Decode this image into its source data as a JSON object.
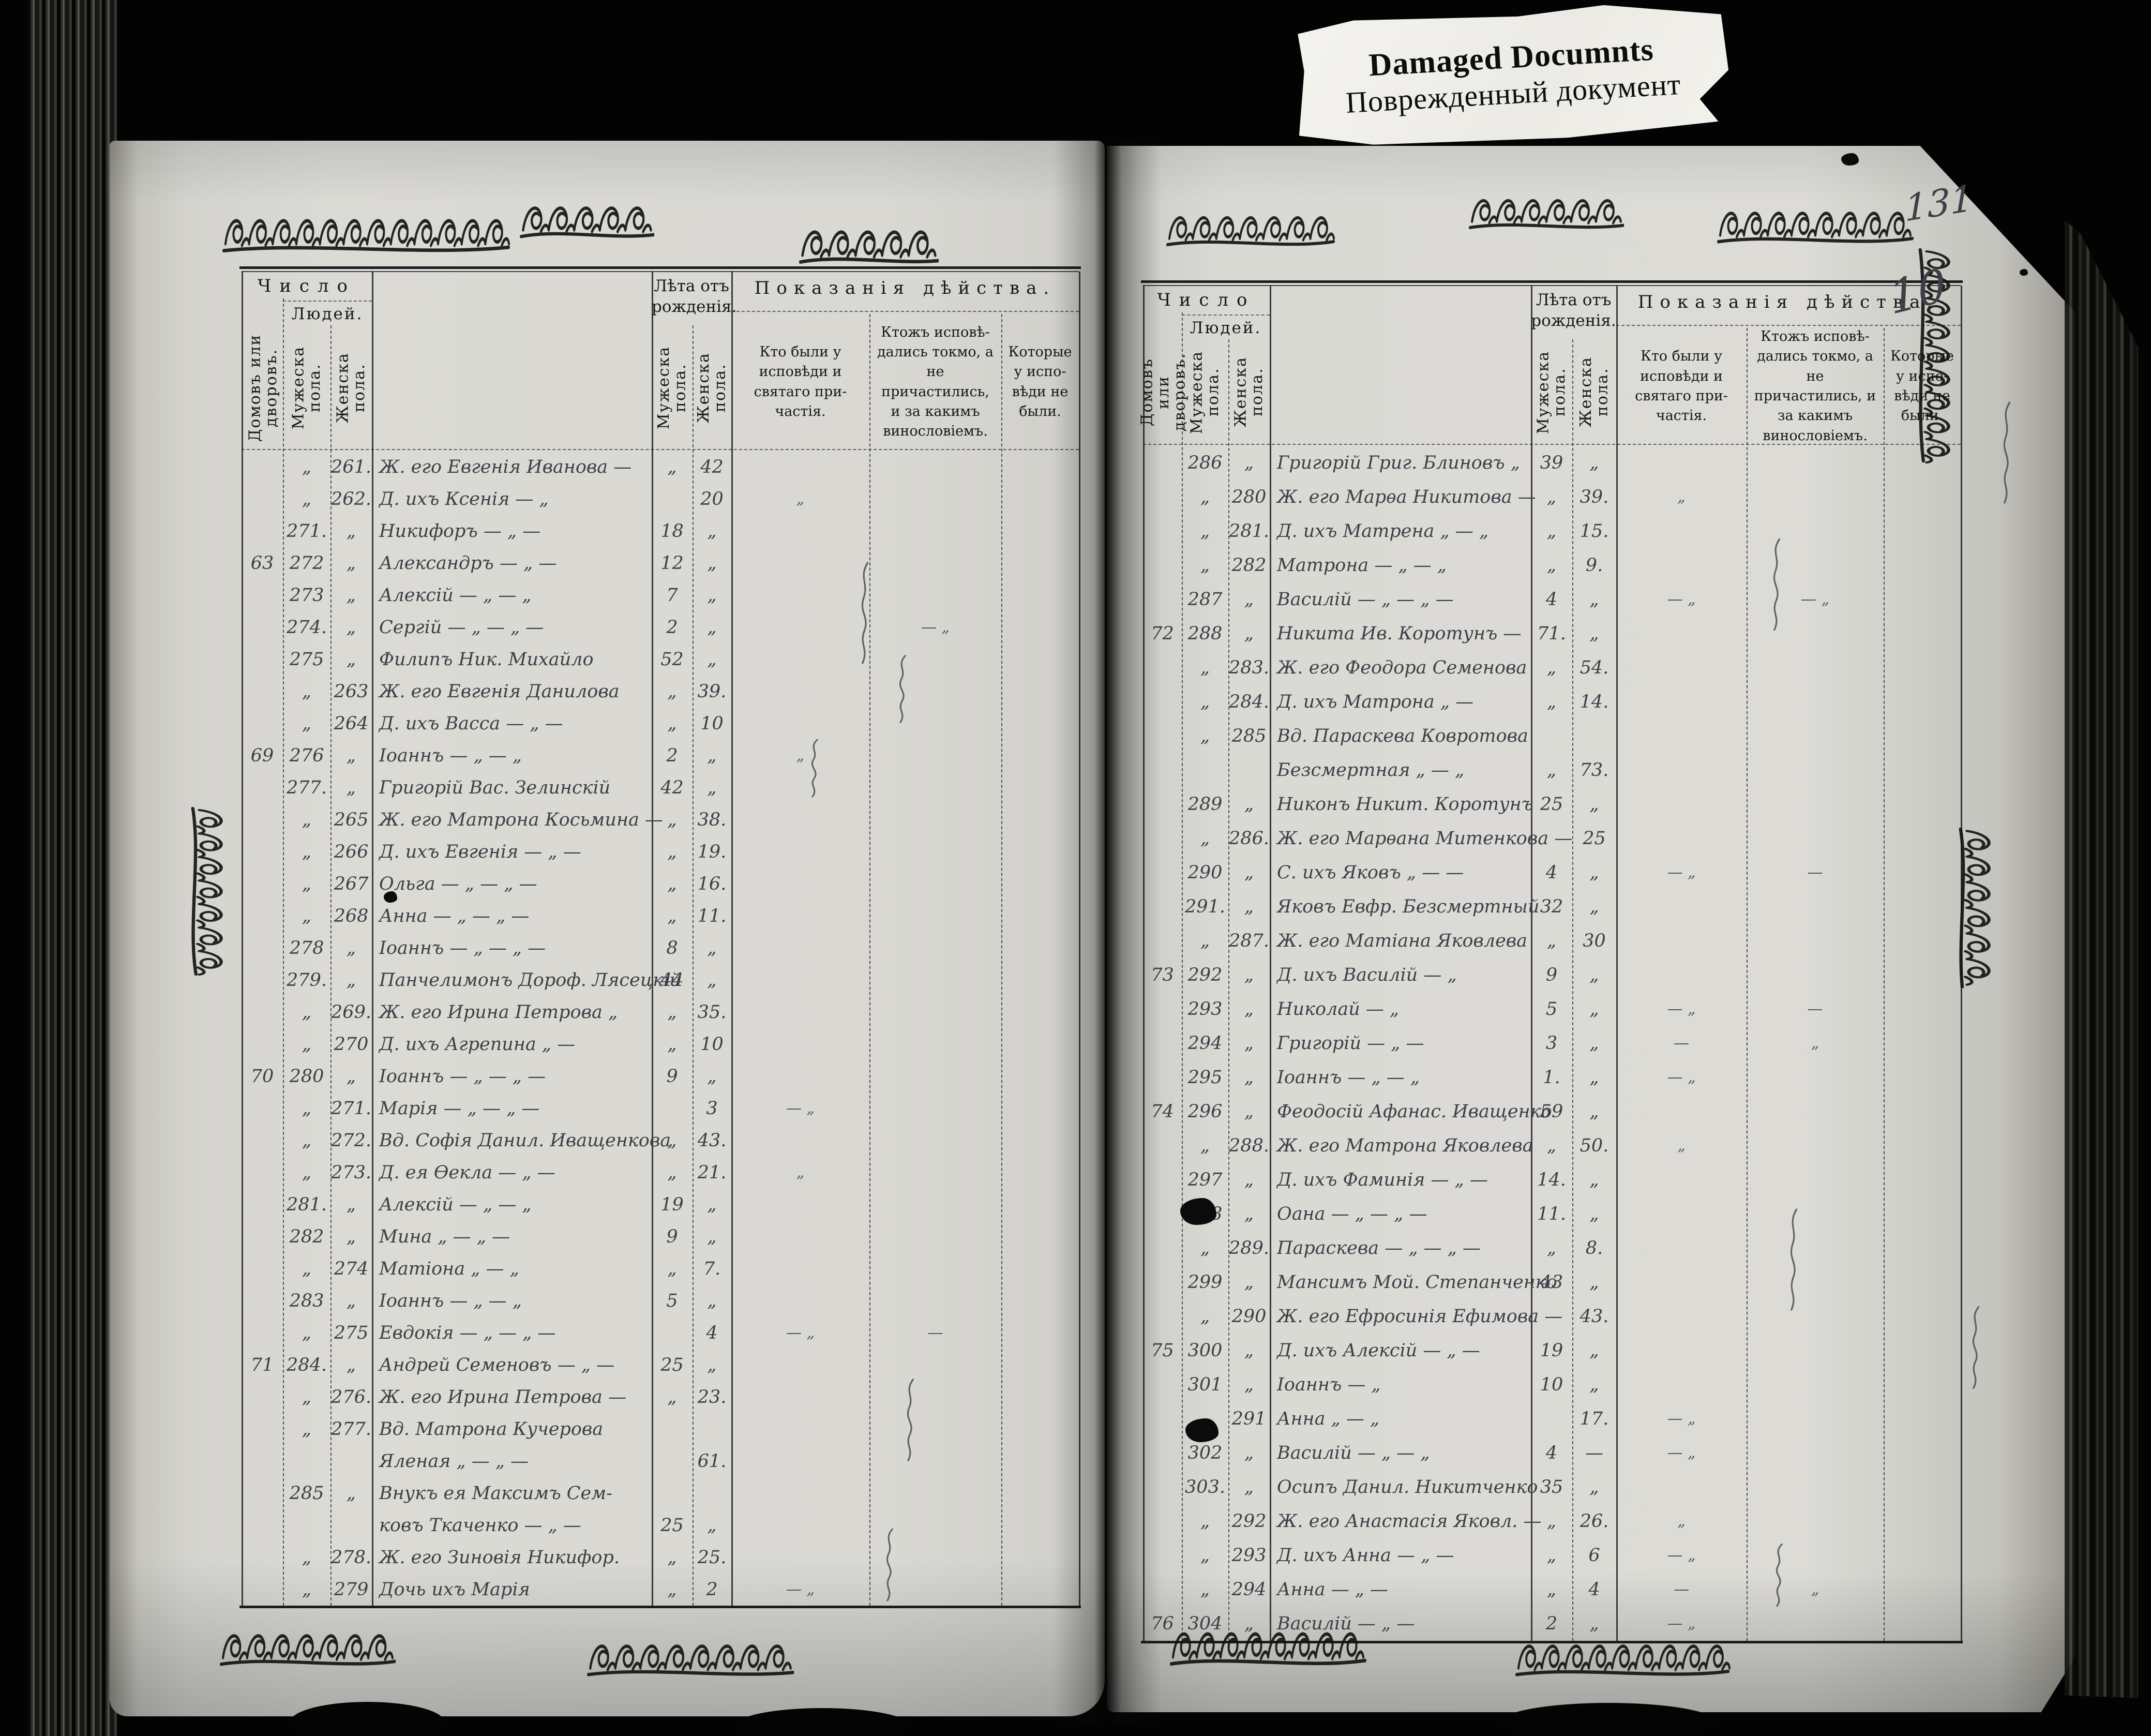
{
  "damage_label": {
    "title": "Damaged Documnts",
    "subtitle": "Поврежденный документ"
  },
  "scan": {
    "page_number": "131",
    "secondary_page_number": "10"
  },
  "column_headers": {
    "chislo": "Число",
    "lyudej": "Людей.",
    "col_house": "Домовъ или дворовъ.",
    "col_male_no": "Мужеска пола.",
    "col_female_no": "Женска пола.",
    "leta": "Лѣта отъ рожденія.",
    "age_male": "Мужеска пола.",
    "age_female": "Женска пола.",
    "pokazaniya": "Показанія дѣйства.",
    "isp1": "Кто были у исповѣди и святаго при­частія.",
    "isp2": "Ктожъ исповѣ­дались токмо, а не причастились, и за какимъ винословіемъ.",
    "isp3": "Которые у испо­вѣди не были."
  },
  "left_page": {
    "rows": [
      {
        "h": "",
        "m": "„",
        "f": "261.",
        "n": "Ж. его Евгенія Иванова —",
        "am": "„",
        "af": "42",
        "i1": "",
        "i2": "",
        "i3": ""
      },
      {
        "h": "",
        "m": "„",
        "f": "262.",
        "n": "Д. ихъ Ксенія — „",
        "am": "",
        "af": "20",
        "i1": "„",
        "i2": "",
        "i3": ""
      },
      {
        "h": "",
        "m": "271.",
        "f": "„",
        "n": "Никифоръ — „ —",
        "am": "18",
        "af": "„",
        "i1": "",
        "i2": "",
        "i3": ""
      },
      {
        "h": "63",
        "m": "272",
        "f": "„",
        "n": "Александръ — „ —",
        "am": "12",
        "af": "„",
        "i1": "",
        "i2": "",
        "i3": ""
      },
      {
        "h": "",
        "m": "273",
        "f": "„",
        "n": "Алексій — „ — „",
        "am": "7",
        "af": "„",
        "i1": "",
        "i2": "",
        "i3": ""
      },
      {
        "h": "",
        "m": "274.",
        "f": "„",
        "n": "Сергій — „ — „ —",
        "am": "2",
        "af": "„",
        "i1": "",
        "i2": "— „",
        "i3": ""
      },
      {
        "h": "",
        "m": "275",
        "f": "„",
        "n": "Филипъ Ник. Михайло",
        "am": "52",
        "af": "„",
        "i1": "",
        "i2": "",
        "i3": ""
      },
      {
        "h": "",
        "m": "„",
        "f": "263",
        "n": "Ж. его Евгенія Данилова",
        "am": "„",
        "af": "39.",
        "i1": "",
        "i2": "",
        "i3": ""
      },
      {
        "h": "",
        "m": "„",
        "f": "264",
        "n": "Д. ихъ Васса — „ —",
        "am": "„",
        "af": "10",
        "i1": "",
        "i2": "",
        "i3": ""
      },
      {
        "h": "69",
        "m": "276",
        "f": "„",
        "n": "Іоаннъ — „ — „",
        "am": "2",
        "af": "„",
        "i1": "„",
        "i2": "",
        "i3": ""
      },
      {
        "h": "",
        "m": "277.",
        "f": "„",
        "n": "Григорій Вас. Зелинскій",
        "am": "42",
        "af": "„",
        "i1": "",
        "i2": "",
        "i3": ""
      },
      {
        "h": "",
        "m": "„",
        "f": "265",
        "n": "Ж. его Матрона Косьмина —",
        "am": "„",
        "af": "38.",
        "i1": "",
        "i2": "",
        "i3": ""
      },
      {
        "h": "",
        "m": "„",
        "f": "266",
        "n": "Д. ихъ Евгенія — „ —",
        "am": "„",
        "af": "19.",
        "i1": "",
        "i2": "",
        "i3": ""
      },
      {
        "h": "",
        "m": "„",
        "f": "267",
        "n": "Ольга — „ — „ —",
        "am": "„",
        "af": "16.",
        "i1": "",
        "i2": "",
        "i3": ""
      },
      {
        "h": "",
        "m": "„",
        "f": "268",
        "n": "Анна — „ — „ —",
        "am": "„",
        "af": "11.",
        "i1": "",
        "i2": "",
        "i3": ""
      },
      {
        "h": "",
        "m": "278",
        "f": "„",
        "n": "Іоаннъ — „ — „ —",
        "am": "8",
        "af": "„",
        "i1": "",
        "i2": "",
        "i3": ""
      },
      {
        "h": "",
        "m": "279.",
        "f": "„",
        "n": "Панчелимонъ Дороф. Лясецкій",
        "am": "44",
        "af": "„",
        "i1": "",
        "i2": "",
        "i3": ""
      },
      {
        "h": "",
        "m": "„",
        "f": "269.",
        "n": "Ж. его Ирина Петрова „",
        "am": "„",
        "af": "35.",
        "i1": "",
        "i2": "",
        "i3": ""
      },
      {
        "h": "",
        "m": "„",
        "f": "270",
        "n": "Д. ихъ Агрепина „ —",
        "am": "„",
        "af": "10",
        "i1": "",
        "i2": "",
        "i3": ""
      },
      {
        "h": "70",
        "m": "280",
        "f": "„",
        "n": "Іоаннъ — „ — „ —",
        "am": "9",
        "af": "„",
        "i1": "",
        "i2": "",
        "i3": ""
      },
      {
        "h": "",
        "m": "„",
        "f": "271.",
        "n": "Марія — „ — „ —",
        "am": "",
        "af": "3",
        "i1": "— „",
        "i2": "",
        "i3": ""
      },
      {
        "h": "",
        "m": "„",
        "f": "272.",
        "n": "Вд. Софія Данил. Иващенкова",
        "am": "„",
        "af": "43.",
        "i1": "",
        "i2": "",
        "i3": ""
      },
      {
        "h": "",
        "m": "„",
        "f": "273.",
        "n": "Д. ея Ѳекла — „ —",
        "am": "„",
        "af": "21.",
        "i1": "„",
        "i2": "",
        "i3": ""
      },
      {
        "h": "",
        "m": "281.",
        "f": "„",
        "n": "Алексій — „ — „",
        "am": "19",
        "af": "„",
        "i1": "",
        "i2": "",
        "i3": ""
      },
      {
        "h": "",
        "m": "282",
        "f": "„",
        "n": "Мина „ — „ —",
        "am": "9",
        "af": "„",
        "i1": "",
        "i2": "",
        "i3": ""
      },
      {
        "h": "",
        "m": "„",
        "f": "274",
        "n": "Матіона „ — „",
        "am": "„",
        "af": "7.",
        "i1": "",
        "i2": "",
        "i3": ""
      },
      {
        "h": "",
        "m": "283",
        "f": "„",
        "n": "Іоаннъ — „ — „",
        "am": "5",
        "af": "„",
        "i1": "",
        "i2": "",
        "i3": ""
      },
      {
        "h": "",
        "m": "„",
        "f": "275",
        "n": "Евдокія — „ — „ —",
        "am": "",
        "af": "4",
        "i1": "— „",
        "i2": "—",
        "i3": ""
      },
      {
        "h": "71",
        "m": "284.",
        "f": "„",
        "n": "Андрей Семеновъ — „ —",
        "am": "25",
        "af": "„",
        "i1": "",
        "i2": "",
        "i3": ""
      },
      {
        "h": "",
        "m": "„",
        "f": "276.",
        "n": "Ж. его Ирина Петрова —",
        "am": "„",
        "af": "23.",
        "i1": "",
        "i2": "",
        "i3": ""
      },
      {
        "h": "",
        "m": "„",
        "f": "277.",
        "n": "Вд. Матрона Кучерова",
        "am": "",
        "af": "",
        "i1": "",
        "i2": "",
        "i3": ""
      },
      {
        "h": "",
        "m": "",
        "f": "",
        "n": "Яленая „ — „ —",
        "am": "",
        "af": "61.",
        "i1": "",
        "i2": "",
        "i3": ""
      },
      {
        "h": "",
        "m": "285",
        "f": "„",
        "n": "Внукъ ея Максимъ Сем-",
        "am": "",
        "af": "",
        "i1": "",
        "i2": "",
        "i3": ""
      },
      {
        "h": "",
        "m": "",
        "f": "",
        "n": "ковъ Ткаченко — „ —",
        "am": "25",
        "af": "„",
        "i1": "",
        "i2": "",
        "i3": ""
      },
      {
        "h": "",
        "m": "„",
        "f": "278.",
        "n": "Ж. его Зиновія Никифор.",
        "am": "„",
        "af": "25.",
        "i1": "",
        "i2": "",
        "i3": ""
      },
      {
        "h": "",
        "m": "„",
        "f": "279",
        "n": "Дочь ихъ Марія",
        "am": "„",
        "af": "2",
        "i1": "— „",
        "i2": "",
        "i3": ""
      }
    ]
  },
  "right_page": {
    "rows": [
      {
        "h": "",
        "m": "286",
        "f": "„",
        "n": "Григорій Григ. Блиновъ „",
        "am": "39",
        "af": "„",
        "i1": "",
        "i2": "",
        "i3": ""
      },
      {
        "h": "",
        "m": "„",
        "f": "280",
        "n": "Ж. его Марѳа Никитова —",
        "am": "„",
        "af": "39.",
        "i1": "„",
        "i2": "",
        "i3": ""
      },
      {
        "h": "",
        "m": "„",
        "f": "281.",
        "n": "Д. ихъ Матрена „ — „",
        "am": "„",
        "af": "15.",
        "i1": "",
        "i2": "",
        "i3": ""
      },
      {
        "h": "",
        "m": "„",
        "f": "282",
        "n": "Матрона — „ — „",
        "am": "„",
        "af": "9.",
        "i1": "",
        "i2": "",
        "i3": ""
      },
      {
        "h": "",
        "m": "287",
        "f": "„",
        "n": "Василій — „ — „ —",
        "am": "4",
        "af": "„",
        "i1": "— „",
        "i2": "— „",
        "i3": ""
      },
      {
        "h": "72",
        "m": "288",
        "f": "„",
        "n": "Никита Ив. Коротунъ —",
        "am": "71.",
        "af": "„",
        "i1": "",
        "i2": "",
        "i3": ""
      },
      {
        "h": "",
        "m": "„",
        "f": "283.",
        "n": "Ж. его Феодора Семенова",
        "am": "„",
        "af": "54.",
        "i1": "",
        "i2": "",
        "i3": ""
      },
      {
        "h": "",
        "m": "„",
        "f": "284.",
        "n": "Д. ихъ Матрона „ —",
        "am": "„",
        "af": "14.",
        "i1": "",
        "i2": "",
        "i3": ""
      },
      {
        "h": "",
        "m": "„",
        "f": "285",
        "n": "Вд. Параскева Ковротова",
        "am": "",
        "af": "",
        "i1": "",
        "i2": "",
        "i3": ""
      },
      {
        "h": "",
        "m": "",
        "f": "",
        "n": "Безсмертная „ — „",
        "am": "„",
        "af": "73.",
        "i1": "",
        "i2": "",
        "i3": ""
      },
      {
        "h": "",
        "m": "289",
        "f": "„",
        "n": "Никонъ Никит. Коротунъ",
        "am": "25",
        "af": "„",
        "i1": "",
        "i2": "",
        "i3": ""
      },
      {
        "h": "",
        "m": "„",
        "f": "286.",
        "n": "Ж. его Марѳана Митенкова —",
        "am": "",
        "af": "25",
        "i1": "",
        "i2": "",
        "i3": ""
      },
      {
        "h": "",
        "m": "290",
        "f": "„",
        "n": "С. ихъ Яковъ „ — —",
        "am": "4",
        "af": "„",
        "i1": "— „",
        "i2": "—",
        "i3": ""
      },
      {
        "h": "",
        "m": "291.",
        "f": "„",
        "n": "Яковъ Евфр. Безсмертный",
        "am": "32",
        "af": "„",
        "i1": "",
        "i2": "",
        "i3": ""
      },
      {
        "h": "",
        "m": "„",
        "f": "287.",
        "n": "Ж. его Матіана Яковлева",
        "am": "„",
        "af": "30",
        "i1": "",
        "i2": "",
        "i3": ""
      },
      {
        "h": "73",
        "m": "292",
        "f": "„",
        "n": "Д. ихъ Василій — „",
        "am": "9",
        "af": "„",
        "i1": "",
        "i2": "",
        "i3": ""
      },
      {
        "h": "",
        "m": "293",
        "f": "„",
        "n": "Николай — „",
        "am": "5",
        "af": "„",
        "i1": "— „",
        "i2": "—",
        "i3": ""
      },
      {
        "h": "",
        "m": "294",
        "f": "„",
        "n": "Григорій — „ —",
        "am": "3",
        "af": "„",
        "i1": "—",
        "i2": "„",
        "i3": ""
      },
      {
        "h": "",
        "m": "295",
        "f": "„",
        "n": "Іоаннъ — „ — „",
        "am": "1.",
        "af": "„",
        "i1": "— „",
        "i2": "",
        "i3": ""
      },
      {
        "h": "74",
        "m": "296",
        "f": "„",
        "n": "Феодосій Афанас. Иващенко",
        "am": "59",
        "af": "„",
        "i1": "",
        "i2": "",
        "i3": ""
      },
      {
        "h": "",
        "m": "„",
        "f": "288.",
        "n": "Ж. его Матрона Яковлева",
        "am": "„",
        "af": "50.",
        "i1": "„",
        "i2": "",
        "i3": ""
      },
      {
        "h": "",
        "m": "297",
        "f": "„",
        "n": "Д. ихъ Фаминія — „ —",
        "am": "14.",
        "af": "„",
        "i1": "",
        "i2": "",
        "i3": ""
      },
      {
        "h": "",
        "m": "298",
        "f": "„",
        "n": "Оана — „ — „ —",
        "am": "11.",
        "af": "„",
        "i1": "",
        "i2": "",
        "i3": ""
      },
      {
        "h": "",
        "m": "„",
        "f": "289.",
        "n": "Параскева — „ — „ —",
        "am": "„",
        "af": "8.",
        "i1": "",
        "i2": "",
        "i3": ""
      },
      {
        "h": "",
        "m": "299",
        "f": "„",
        "n": "Мансимъ Мой. Степанченко",
        "am": "43",
        "af": "„",
        "i1": "",
        "i2": "",
        "i3": ""
      },
      {
        "h": "",
        "m": "„",
        "f": "290",
        "n": "Ж. его Ефросинія Ефимова —",
        "am": "",
        "af": "43.",
        "i1": "",
        "i2": "",
        "i3": ""
      },
      {
        "h": "75",
        "m": "300",
        "f": "„",
        "n": "Д. ихъ Алексій — „ —",
        "am": "19",
        "af": "„",
        "i1": "",
        "i2": "",
        "i3": ""
      },
      {
        "h": "",
        "m": "301",
        "f": "„",
        "n": "Іоаннъ — „",
        "am": "10",
        "af": "„",
        "i1": "",
        "i2": "",
        "i3": ""
      },
      {
        "h": "",
        "m": "„",
        "f": "291",
        "n": "Анна „ — „",
        "am": "",
        "af": "17.",
        "i1": "— „",
        "i2": "",
        "i3": ""
      },
      {
        "h": "",
        "m": "302",
        "f": "„",
        "n": "Василій — „ — „",
        "am": "4",
        "af": "—",
        "i1": "— „",
        "i2": "",
        "i3": ""
      },
      {
        "h": "",
        "m": "303.",
        "f": "„",
        "n": "Осипъ Данил. Никитченко",
        "am": "35",
        "af": "„",
        "i1": "",
        "i2": "",
        "i3": ""
      },
      {
        "h": "",
        "m": "„",
        "f": "292",
        "n": "Ж. его Анастасія Яковл. —",
        "am": "„",
        "af": "26.",
        "i1": "„",
        "i2": "",
        "i3": ""
      },
      {
        "h": "",
        "m": "„",
        "f": "293",
        "n": "Д. ихъ Анна — „ —",
        "am": "„",
        "af": "6",
        "i1": "— „",
        "i2": "",
        "i3": ""
      },
      {
        "h": "",
        "m": "„",
        "f": "294",
        "n": "Анна — „ —",
        "am": "„",
        "af": "4",
        "i1": "—",
        "i2": "„",
        "i3": ""
      },
      {
        "h": "76",
        "m": "304",
        "f": "„",
        "n": "Василій — „ —",
        "am": "2",
        "af": "„",
        "i1": "— „",
        "i2": "",
        "i3": ""
      }
    ]
  }
}
